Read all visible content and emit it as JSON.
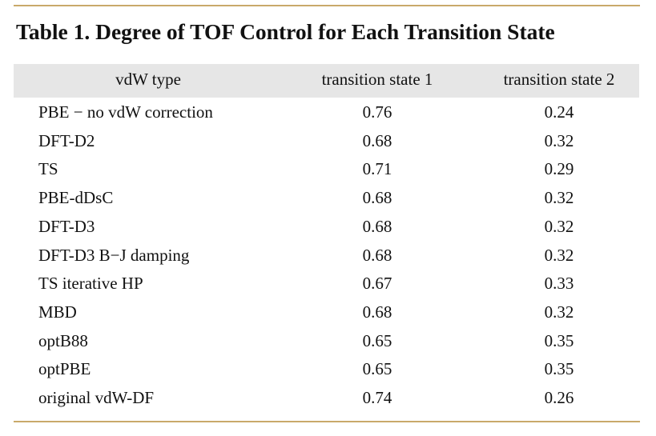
{
  "table": {
    "title": "Table 1. Degree of TOF Control for Each Transition State",
    "header": [
      "vdW type",
      "transition state 1",
      "transition state 2"
    ],
    "rows": [
      [
        "PBE − no vdW correction",
        "0.76",
        "0.24"
      ],
      [
        "DFT-D2",
        "0.68",
        "0.32"
      ],
      [
        "TS",
        "0.71",
        "0.29"
      ],
      [
        "PBE-dDsC",
        "0.68",
        "0.32"
      ],
      [
        "DFT-D3",
        "0.68",
        "0.32"
      ],
      [
        "DFT-D3 B−J damping",
        "0.68",
        "0.32"
      ],
      [
        "TS iterative HP",
        "0.67",
        "0.33"
      ],
      [
        "MBD",
        "0.68",
        "0.32"
      ],
      [
        "optB88",
        "0.65",
        "0.35"
      ],
      [
        "optPBE",
        "0.65",
        "0.35"
      ],
      [
        "original vdW-DF",
        "0.74",
        "0.26"
      ]
    ]
  }
}
